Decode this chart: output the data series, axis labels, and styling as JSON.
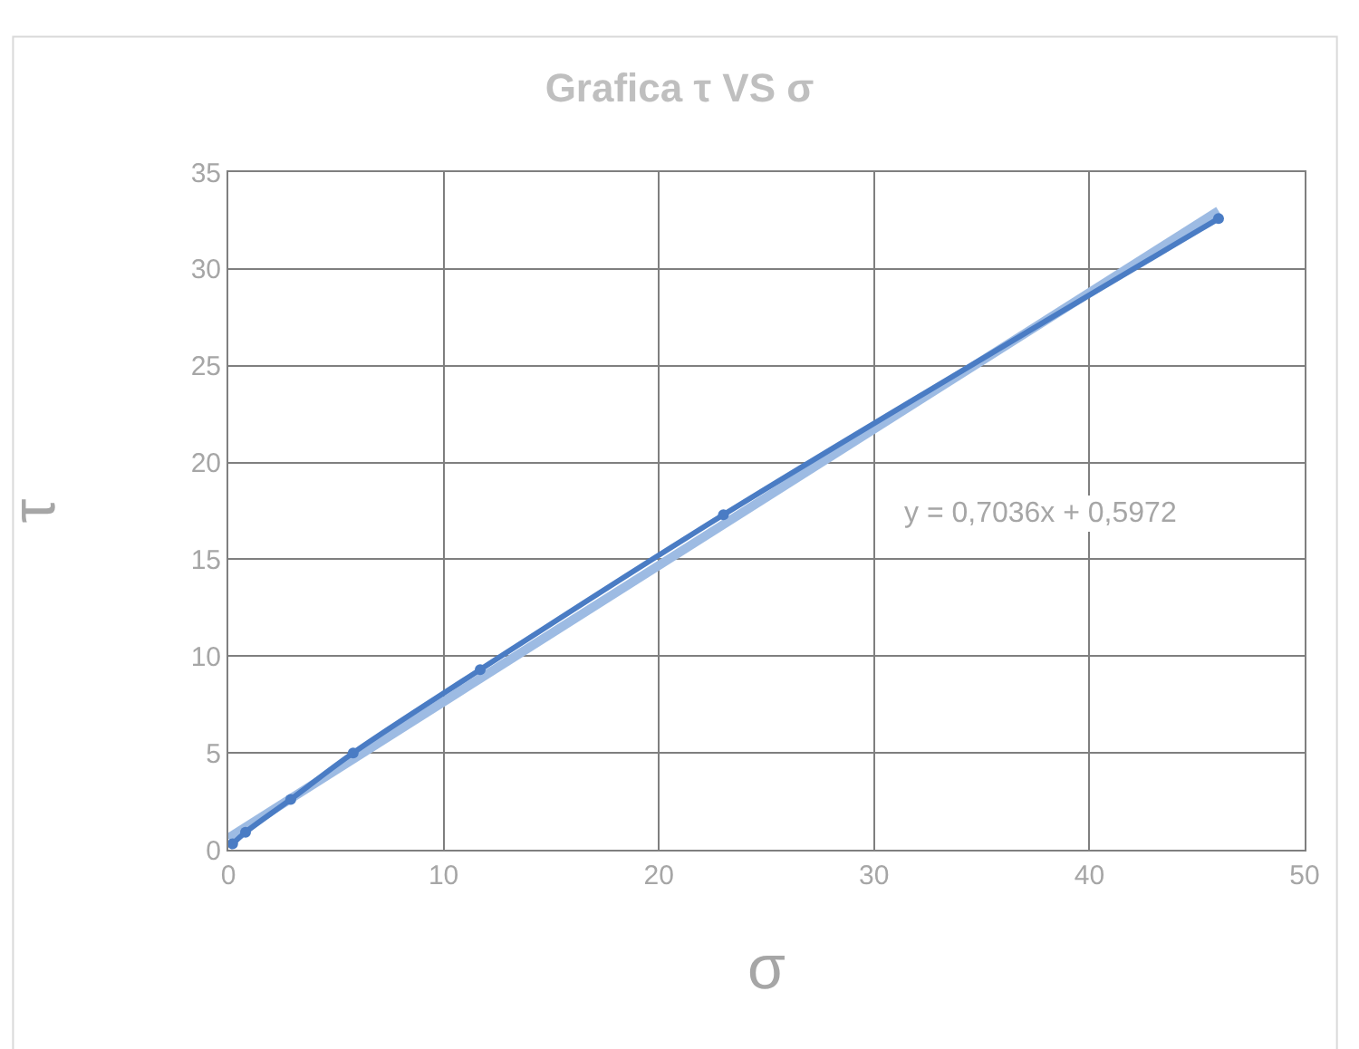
{
  "chart_data": {
    "type": "line",
    "title": "Grafica τ VS σ",
    "xlabel": "σ",
    "ylabel": "τ",
    "xlim": [
      0,
      50
    ],
    "xticks": [
      0,
      10,
      20,
      30,
      40,
      50
    ],
    "ylim": [
      0,
      35
    ],
    "yticks": [
      0,
      5,
      10,
      15,
      20,
      25,
      30,
      35
    ],
    "grid": true,
    "marker": "circle",
    "series": [
      {
        "color": "#4a7cc4",
        "x": [
          0.2,
          0.8,
          2.9,
          5.8,
          11.7,
          23,
          46
        ],
        "values": [
          0.3,
          0.9,
          2.6,
          5.0,
          9.3,
          17.3,
          32.6
        ]
      },
      {
        "type": "line",
        "color": "#9dbbe3",
        "marker": "none",
        "x": [
          0,
          46
        ],
        "values": [
          0.6,
          33
        ]
      }
    ],
    "annotations": [
      "y = 0,7036x + 0,5972"
    ]
  }
}
